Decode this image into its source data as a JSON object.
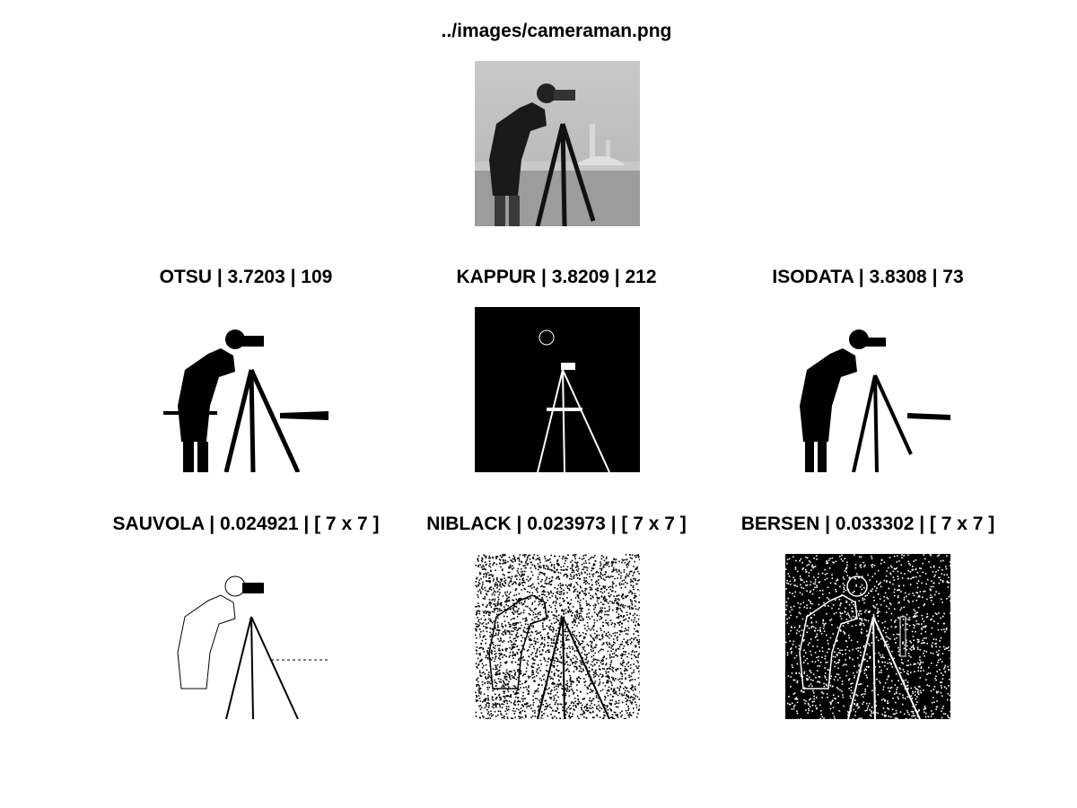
{
  "figure": {
    "main_title": "../images/cameraman.png",
    "panels": [
      {
        "title": "OTSU | 3.7203 | 109"
      },
      {
        "title": "KAPPUR | 3.8209 | 212"
      },
      {
        "title": "ISODATA | 3.8308 | 73"
      },
      {
        "title": "SAUVOLA | 0.024921 | [  7  x  7  ]"
      },
      {
        "title": "NIBLACK | 0.023973 | [  7  x  7  ]"
      },
      {
        "title": "BERSEN | 0.033302 | [  7  x  7  ]"
      }
    ]
  },
  "colors": {
    "background": "#ffffff",
    "ink": "#000000",
    "gray_sky": "#bdbdbd",
    "gray_ground": "#9a9a9a"
  }
}
